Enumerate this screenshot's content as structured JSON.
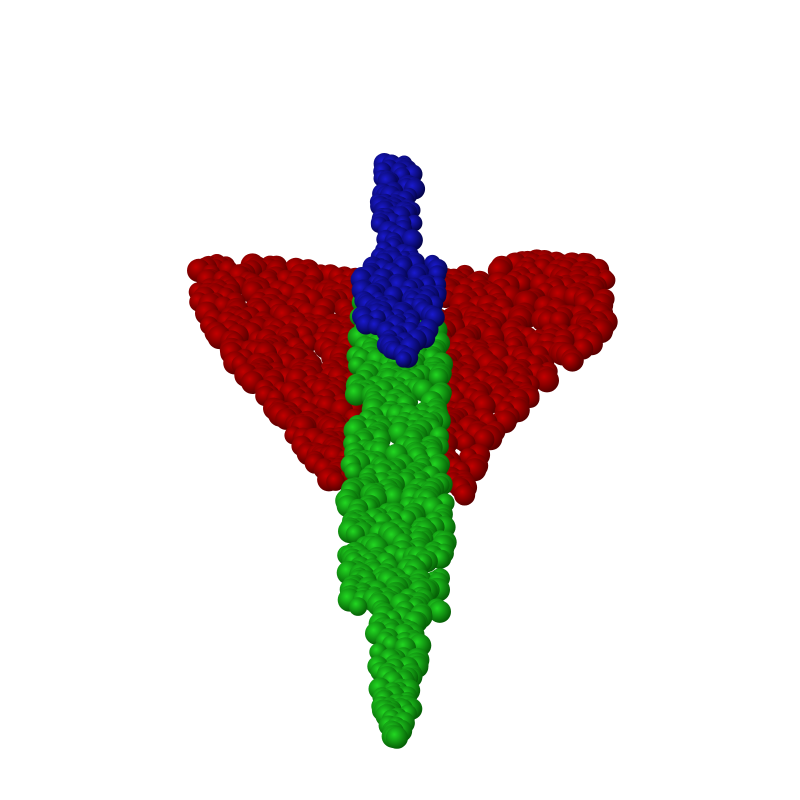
{
  "scene": {
    "background_color": "#ffffff",
    "subject": "point-cloud-airplane",
    "parts": [
      {
        "id": "wings",
        "color": "#c40000",
        "shade": "#5a0000"
      },
      {
        "id": "fuselage",
        "color": "#22d822",
        "shade": "#066006"
      },
      {
        "id": "tail",
        "color": "#1a1ad0",
        "shade": "#04044a"
      }
    ]
  }
}
